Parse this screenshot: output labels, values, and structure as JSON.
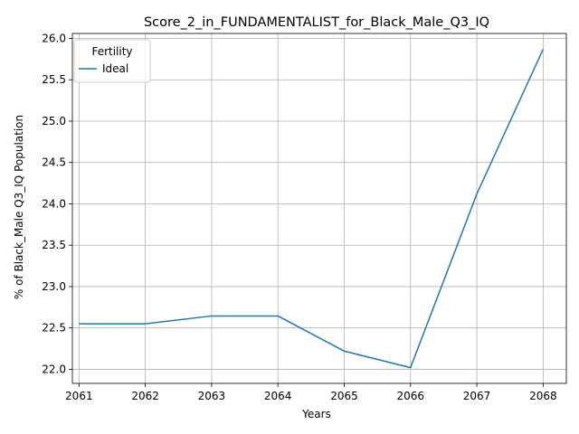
{
  "chart_data": {
    "type": "line",
    "title": "Score_2_in_FUNDAMENTALIST_for_Black_Male_Q3_IQ",
    "xlabel": "Years",
    "ylabel": "% of Black_Male Q3_IQ Population",
    "x": [
      2061,
      2062,
      2063,
      2064,
      2065,
      2066,
      2067,
      2068
    ],
    "series": [
      {
        "name": "Ideal",
        "color": "#1f77b4",
        "values": [
          22.55,
          22.55,
          22.645,
          22.645,
          22.22,
          22.02,
          24.12,
          25.87
        ]
      }
    ],
    "xticks": [
      "2061",
      "2062",
      "2063",
      "2064",
      "2065",
      "2066",
      "2067",
      "2068"
    ],
    "yticks": [
      "22.0",
      "22.5",
      "23.0",
      "23.5",
      "24.0",
      "24.5",
      "25.0",
      "25.5",
      "26.0"
    ],
    "xlim": [
      2060.9,
      2068.35
    ],
    "ylim": [
      21.83,
      26.06
    ],
    "grid": true,
    "legend": {
      "title": "Fertility",
      "placement": "top-left"
    }
  }
}
